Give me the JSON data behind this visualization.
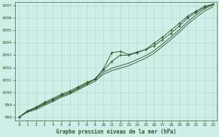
{
  "xlabel": "Graphe pression niveau de la mer (hPa)",
  "background_color": "#ceeee8",
  "grid_color": "#b8d8d4",
  "line_color": "#2d5a2d",
  "ylim": [
    997.7,
    1007.3
  ],
  "xlim": [
    -0.5,
    23.5
  ],
  "xticks": [
    0,
    1,
    2,
    3,
    4,
    5,
    6,
    7,
    8,
    9,
    10,
    11,
    12,
    13,
    14,
    15,
    16,
    17,
    18,
    19,
    20,
    21,
    22,
    23
  ],
  "yticks": [
    998,
    999,
    1000,
    1001,
    1002,
    1003,
    1004,
    1005,
    1006,
    1007
  ],
  "series1": [
    998.0,
    998.5,
    998.8,
    999.2,
    999.5,
    999.85,
    1000.1,
    1000.45,
    1000.8,
    1001.05,
    1001.9,
    1003.2,
    1003.3,
    1003.05,
    1003.25,
    1003.45,
    1003.75,
    1004.25,
    1004.75,
    1005.35,
    1006.0,
    1006.45,
    1006.85,
    1007.1
  ],
  "series2": [
    998.0,
    998.45,
    998.7,
    999.05,
    999.35,
    999.7,
    999.95,
    1000.3,
    1000.65,
    1001.05,
    1001.6,
    1001.95,
    1002.15,
    1002.35,
    1002.65,
    1002.95,
    1003.35,
    1003.9,
    1004.45,
    1005.05,
    1005.7,
    1006.25,
    1006.75,
    1007.05
  ],
  "series3": [
    998.0,
    998.4,
    998.6,
    998.95,
    999.25,
    999.6,
    999.85,
    1000.2,
    1000.55,
    1000.9,
    1001.45,
    1001.75,
    1001.95,
    1002.15,
    1002.45,
    1002.75,
    1003.15,
    1003.7,
    1004.25,
    1004.85,
    1005.5,
    1006.05,
    1006.55,
    1006.9
  ],
  "series4": [
    998.0,
    998.5,
    998.75,
    999.1,
    999.4,
    999.75,
    1000.0,
    1000.35,
    1000.7,
    1001.1,
    1001.8,
    1002.5,
    1003.0,
    1003.0,
    1003.2,
    1003.45,
    1003.95,
    1004.45,
    1005.0,
    1005.55,
    1006.15,
    1006.55,
    1006.95,
    1007.1
  ]
}
